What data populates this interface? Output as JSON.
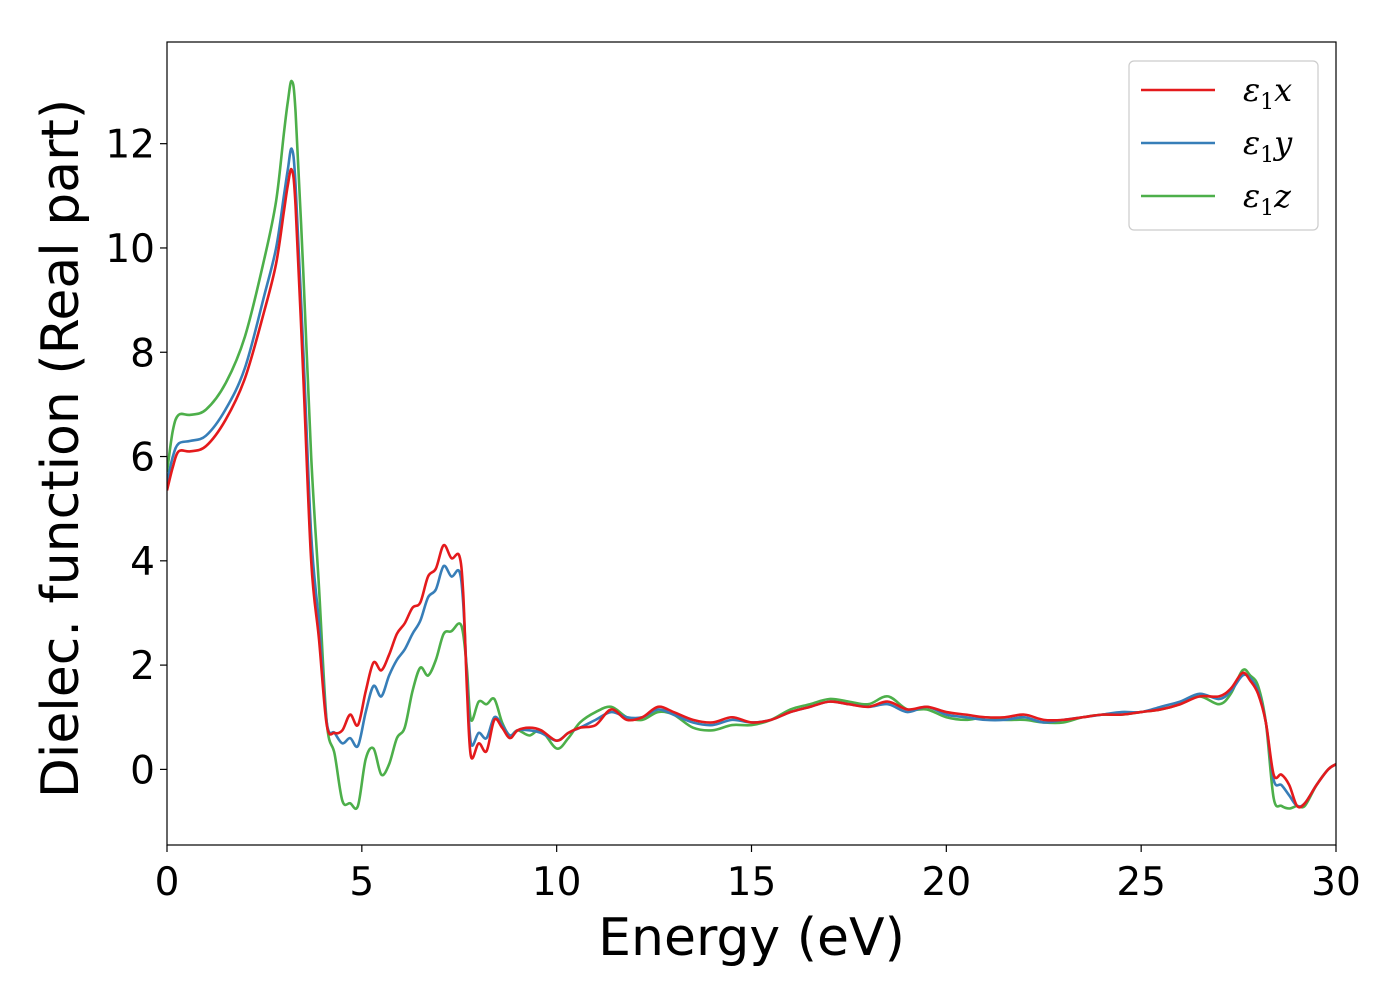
{
  "chart_data": {
    "type": "line",
    "xlabel": "Energy (eV)",
    "ylabel": "Dielec. function (Real part)",
    "xlim": [
      0,
      30
    ],
    "ylim": [
      -1.45,
      13.95
    ],
    "xticks": [
      0,
      5,
      10,
      15,
      20,
      25,
      30
    ],
    "yticks": [
      0,
      2,
      4,
      6,
      8,
      10,
      12
    ],
    "grid": false,
    "legend_position": "top-right",
    "series": [
      {
        "name": "ε₁x",
        "legend_base": "ε",
        "legend_sub": "1",
        "legend_suffix": "x",
        "color": "#e41a1c",
        "x": [
          0,
          0.15,
          0.3,
          0.6,
          1.0,
          1.5,
          2.0,
          2.5,
          2.8,
          3.0,
          3.1,
          3.2,
          3.3,
          3.5,
          3.7,
          3.9,
          4.1,
          4.3,
          4.5,
          4.7,
          4.9,
          5.1,
          5.3,
          5.5,
          5.7,
          5.9,
          6.1,
          6.3,
          6.5,
          6.7,
          6.9,
          7.1,
          7.3,
          7.5,
          7.6,
          7.7,
          7.8,
          8.0,
          8.2,
          8.4,
          8.6,
          8.8,
          9.0,
          9.3,
          9.6,
          10.0,
          10.3,
          10.6,
          11.0,
          11.4,
          11.8,
          12.2,
          12.6,
          13.0,
          13.5,
          14.0,
          14.5,
          15.0,
          15.5,
          16.0,
          16.5,
          17.0,
          17.5,
          18.0,
          18.5,
          19.0,
          19.5,
          20.0,
          20.5,
          21.0,
          21.5,
          22.0,
          22.5,
          23.0,
          23.5,
          24.0,
          24.5,
          25.0,
          25.5,
          26.0,
          26.5,
          27.0,
          27.3,
          27.6,
          27.8,
          28.0,
          28.2,
          28.4,
          28.6,
          28.8,
          29.0,
          29.2,
          29.5,
          29.8,
          30.0
        ],
        "y": [
          5.35,
          5.8,
          6.1,
          6.1,
          6.2,
          6.7,
          7.5,
          8.8,
          9.7,
          10.7,
          11.2,
          11.5,
          10.8,
          7.5,
          4.0,
          2.5,
          0.85,
          0.7,
          0.75,
          1.05,
          0.85,
          1.5,
          2.05,
          1.9,
          2.2,
          2.6,
          2.8,
          3.1,
          3.2,
          3.7,
          3.85,
          4.3,
          4.05,
          4.1,
          3.4,
          1.5,
          0.25,
          0.5,
          0.35,
          0.95,
          0.8,
          0.6,
          0.75,
          0.8,
          0.75,
          0.55,
          0.7,
          0.8,
          0.85,
          1.15,
          0.95,
          1.0,
          1.2,
          1.1,
          0.95,
          0.9,
          1.0,
          0.9,
          0.95,
          1.1,
          1.2,
          1.3,
          1.25,
          1.2,
          1.3,
          1.15,
          1.2,
          1.1,
          1.05,
          1.0,
          1.0,
          1.05,
          0.95,
          0.95,
          1.0,
          1.05,
          1.05,
          1.1,
          1.15,
          1.25,
          1.4,
          1.4,
          1.55,
          1.85,
          1.7,
          1.45,
          0.9,
          -0.1,
          -0.1,
          -0.3,
          -0.7,
          -0.65,
          -0.3,
          0.0,
          0.1
        ]
      },
      {
        "name": "ε₁y",
        "legend_base": "ε",
        "legend_sub": "1",
        "legend_suffix": "y",
        "color": "#377eb8",
        "x": [
          0,
          0.15,
          0.3,
          0.6,
          1.0,
          1.5,
          2.0,
          2.5,
          2.8,
          3.0,
          3.1,
          3.2,
          3.3,
          3.5,
          3.7,
          3.9,
          4.1,
          4.3,
          4.5,
          4.7,
          4.9,
          5.1,
          5.3,
          5.5,
          5.7,
          5.9,
          6.1,
          6.3,
          6.5,
          6.7,
          6.9,
          7.1,
          7.3,
          7.5,
          7.6,
          7.7,
          7.8,
          8.0,
          8.2,
          8.4,
          8.6,
          8.8,
          9.0,
          9.3,
          9.6,
          10.0,
          10.3,
          10.6,
          11.0,
          11.4,
          11.8,
          12.2,
          12.6,
          13.0,
          13.5,
          14.0,
          14.5,
          15.0,
          15.5,
          16.0,
          16.5,
          17.0,
          17.5,
          18.0,
          18.5,
          19.0,
          19.5,
          20.0,
          20.5,
          21.0,
          21.5,
          22.0,
          22.5,
          23.0,
          23.5,
          24.0,
          24.5,
          25.0,
          25.5,
          26.0,
          26.5,
          27.0,
          27.3,
          27.6,
          27.8,
          28.0,
          28.2,
          28.4,
          28.6,
          28.8,
          29.0,
          29.2,
          29.5,
          29.8,
          30.0
        ],
        "y": [
          5.5,
          6.0,
          6.25,
          6.3,
          6.4,
          6.9,
          7.7,
          9.1,
          10.0,
          11.0,
          11.5,
          11.9,
          11.2,
          8.0,
          4.5,
          2.8,
          0.9,
          0.7,
          0.5,
          0.6,
          0.45,
          1.1,
          1.6,
          1.4,
          1.8,
          2.1,
          2.3,
          2.6,
          2.85,
          3.3,
          3.45,
          3.9,
          3.7,
          3.8,
          3.2,
          1.7,
          0.5,
          0.7,
          0.6,
          1.0,
          0.85,
          0.65,
          0.75,
          0.75,
          0.7,
          0.55,
          0.7,
          0.8,
          0.95,
          1.1,
          1.0,
          1.0,
          1.15,
          1.05,
          0.9,
          0.85,
          0.95,
          0.9,
          0.95,
          1.1,
          1.2,
          1.3,
          1.25,
          1.2,
          1.25,
          1.1,
          1.2,
          1.05,
          1.0,
          0.95,
          0.95,
          1.0,
          0.9,
          0.95,
          1.0,
          1.05,
          1.1,
          1.1,
          1.2,
          1.3,
          1.45,
          1.35,
          1.5,
          1.8,
          1.75,
          1.5,
          0.9,
          -0.2,
          -0.3,
          -0.5,
          -0.7,
          -0.65,
          -0.3,
          0.0,
          0.1
        ]
      },
      {
        "name": "ε₁z",
        "legend_base": "ε",
        "legend_sub": "1",
        "legend_suffix": "z",
        "color": "#4daf4a",
        "x": [
          0,
          0.15,
          0.3,
          0.6,
          1.0,
          1.5,
          2.0,
          2.5,
          2.8,
          3.0,
          3.1,
          3.2,
          3.3,
          3.5,
          3.7,
          3.9,
          4.1,
          4.3,
          4.5,
          4.7,
          4.9,
          5.1,
          5.3,
          5.5,
          5.7,
          5.9,
          6.1,
          6.3,
          6.5,
          6.7,
          6.9,
          7.1,
          7.3,
          7.5,
          7.6,
          7.7,
          7.8,
          8.0,
          8.2,
          8.4,
          8.6,
          8.8,
          9.0,
          9.3,
          9.6,
          10.0,
          10.3,
          10.6,
          11.0,
          11.4,
          11.8,
          12.2,
          12.6,
          13.0,
          13.5,
          14.0,
          14.5,
          15.0,
          15.5,
          16.0,
          16.5,
          17.0,
          17.5,
          18.0,
          18.5,
          19.0,
          19.5,
          20.0,
          20.5,
          21.0,
          21.5,
          22.0,
          22.5,
          23.0,
          23.5,
          24.0,
          24.5,
          25.0,
          25.5,
          26.0,
          26.5,
          27.0,
          27.3,
          27.6,
          27.8,
          28.0,
          28.2,
          28.4,
          28.6,
          28.8,
          29.0,
          29.2,
          29.5,
          29.8,
          30.0
        ],
        "y": [
          5.7,
          6.5,
          6.8,
          6.8,
          6.9,
          7.4,
          8.3,
          9.8,
          10.9,
          12.2,
          12.8,
          13.2,
          12.6,
          9.5,
          6.0,
          3.5,
          0.9,
          0.3,
          -0.6,
          -0.65,
          -0.7,
          0.2,
          0.4,
          -0.1,
          0.1,
          0.6,
          0.8,
          1.5,
          1.95,
          1.8,
          2.1,
          2.6,
          2.65,
          2.8,
          2.6,
          1.9,
          0.95,
          1.3,
          1.25,
          1.35,
          0.9,
          0.65,
          0.75,
          0.65,
          0.75,
          0.4,
          0.6,
          0.9,
          1.1,
          1.2,
          1.0,
          0.95,
          1.1,
          1.05,
          0.8,
          0.75,
          0.85,
          0.85,
          0.95,
          1.15,
          1.25,
          1.35,
          1.3,
          1.25,
          1.4,
          1.15,
          1.15,
          1.0,
          0.95,
          1.0,
          0.95,
          0.95,
          0.9,
          0.9,
          1.0,
          1.05,
          1.05,
          1.1,
          1.15,
          1.25,
          1.4,
          1.25,
          1.45,
          1.9,
          1.8,
          1.6,
          0.9,
          -0.55,
          -0.7,
          -0.75,
          -0.7,
          -0.7,
          -0.3,
          0.0,
          0.1
        ]
      }
    ]
  }
}
